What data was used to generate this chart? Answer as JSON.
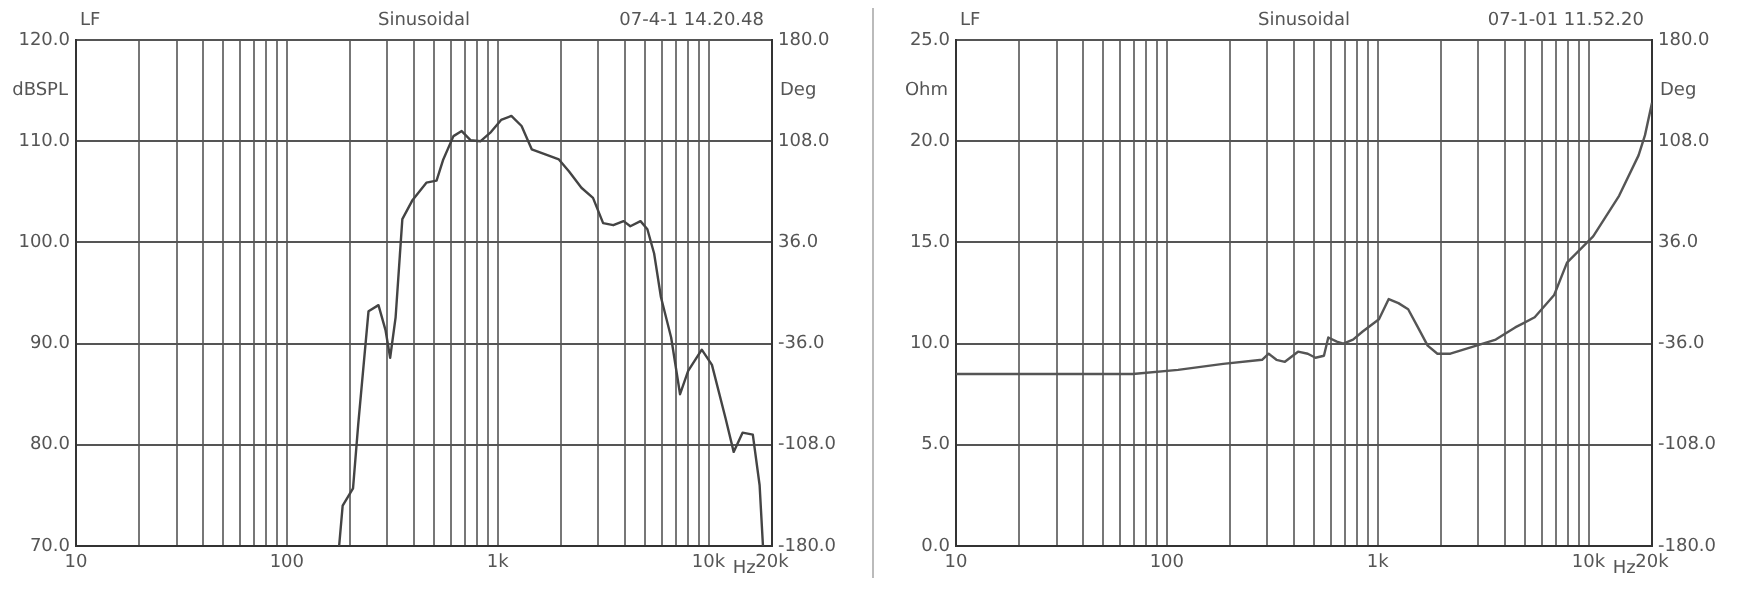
{
  "chart_data": [
    {
      "type": "line",
      "title": "Sinusoidal",
      "annotations": [
        "LF",
        "07-4-1 14.20.48"
      ],
      "xlabel": "Hz",
      "ylabel": "dBSPL",
      "y2label": "Deg",
      "log": "x",
      "grid": true,
      "legend": false,
      "marker": "none",
      "line_style": "solid",
      "xlim": [
        10,
        20000
      ],
      "xticks": [
        {
          "value": 10,
          "label": "10"
        },
        {
          "value": 20,
          "label": null
        },
        {
          "value": 30,
          "label": null
        },
        {
          "value": 40,
          "label": null
        },
        {
          "value": 50,
          "label": null
        },
        {
          "value": 60,
          "label": null
        },
        {
          "value": 70,
          "label": null
        },
        {
          "value": 80,
          "label": null
        },
        {
          "value": 90,
          "label": null
        },
        {
          "value": 100,
          "label": "100"
        },
        {
          "value": 200,
          "label": null
        },
        {
          "value": 300,
          "label": null
        },
        {
          "value": 400,
          "label": null
        },
        {
          "value": 500,
          "label": null
        },
        {
          "value": 600,
          "label": null
        },
        {
          "value": 700,
          "label": null
        },
        {
          "value": 800,
          "label": null
        },
        {
          "value": 900,
          "label": null
        },
        {
          "value": 1000,
          "label": "1k"
        },
        {
          "value": 2000,
          "label": null
        },
        {
          "value": 3000,
          "label": null
        },
        {
          "value": 4000,
          "label": null
        },
        {
          "value": 5000,
          "label": null
        },
        {
          "value": 6000,
          "label": null
        },
        {
          "value": 7000,
          "label": null
        },
        {
          "value": 8000,
          "label": null
        },
        {
          "value": 9000,
          "label": null
        },
        {
          "value": 10000,
          "label": "10k"
        },
        {
          "value": 20000,
          "label": "20k"
        }
      ],
      "ylim": [
        70,
        120
      ],
      "yticks": [
        {
          "value": 70,
          "label": "70.0"
        },
        {
          "value": 80,
          "label": "80.0"
        },
        {
          "value": 90,
          "label": "90.0"
        },
        {
          "value": 100,
          "label": "100.0"
        },
        {
          "value": 110,
          "label": "110.0"
        },
        {
          "value": 120,
          "label": "120.0"
        }
      ],
      "y2lim": [
        -180,
        180
      ],
      "y2ticks": [
        {
          "value": -180,
          "label": "-180.0"
        },
        {
          "value": -108,
          "label": "-108.0"
        },
        {
          "value": -36,
          "label": "-36.0"
        },
        {
          "value": 36,
          "label": "36.0"
        },
        {
          "value": 108,
          "label": "108.0"
        },
        {
          "value": 180,
          "label": "180.0"
        }
      ],
      "series": [
        {
          "color": "#444444",
          "x": [
            177,
            184,
            206,
            218,
            244,
            272,
            294,
            309,
            328,
            353,
            395,
            459,
            513,
            552,
            617,
            675,
            743,
            830,
            929,
            1038,
            1161,
            1298,
            1450,
            1683,
            1951,
            2181,
            2495,
            2832,
            3163,
            3535,
            3953,
            4257,
            4757,
            5128,
            5521,
            5945,
            6648,
            7328,
            8005,
            9289,
            10380,
            12050,
            13160,
            14500,
            16220,
            17470,
            18120
          ],
          "values": [
            70,
            74.0,
            75.7,
            82.0,
            93.2,
            93.8,
            91.3,
            88.6,
            92.6,
            102.3,
            104.2,
            105.9,
            106.1,
            108.2,
            110.5,
            111.0,
            110.1,
            110.0,
            110.9,
            112.1,
            112.5,
            111.5,
            109.2,
            108.7,
            108.2,
            107.0,
            105.4,
            104.4,
            101.9,
            101.7,
            102.1,
            101.6,
            102.1,
            101.3,
            98.9,
            94.6,
            90.6,
            85.0,
            87.3,
            89.4,
            87.9,
            82.6,
            79.3,
            81.2,
            81.0,
            76.0,
            70
          ]
        }
      ]
    },
    {
      "type": "line",
      "title": "Sinusoidal",
      "annotations": [
        "LF",
        "07-1-01 11.52.20"
      ],
      "xlabel": "Hz",
      "ylabel": "Ohm",
      "y2label": "Deg",
      "log": "x",
      "grid": true,
      "legend": false,
      "marker": "none",
      "line_style": "solid",
      "xlim": [
        10,
        20000
      ],
      "xticks": [
        {
          "value": 10,
          "label": "10"
        },
        {
          "value": 20,
          "label": null
        },
        {
          "value": 30,
          "label": null
        },
        {
          "value": 40,
          "label": null
        },
        {
          "value": 50,
          "label": null
        },
        {
          "value": 60,
          "label": null
        },
        {
          "value": 70,
          "label": null
        },
        {
          "value": 80,
          "label": null
        },
        {
          "value": 90,
          "label": null
        },
        {
          "value": 100,
          "label": "100"
        },
        {
          "value": 200,
          "label": null
        },
        {
          "value": 300,
          "label": null
        },
        {
          "value": 400,
          "label": null
        },
        {
          "value": 500,
          "label": null
        },
        {
          "value": 600,
          "label": null
        },
        {
          "value": 700,
          "label": null
        },
        {
          "value": 800,
          "label": null
        },
        {
          "value": 900,
          "label": null
        },
        {
          "value": 1000,
          "label": "1k"
        },
        {
          "value": 2000,
          "label": null
        },
        {
          "value": 3000,
          "label": null
        },
        {
          "value": 4000,
          "label": null
        },
        {
          "value": 5000,
          "label": null
        },
        {
          "value": 6000,
          "label": null
        },
        {
          "value": 7000,
          "label": null
        },
        {
          "value": 8000,
          "label": null
        },
        {
          "value": 9000,
          "label": null
        },
        {
          "value": 10000,
          "label": "10k"
        },
        {
          "value": 20000,
          "label": "20k"
        }
      ],
      "ylim": [
        0,
        25
      ],
      "yticks": [
        {
          "value": 0,
          "label": "0.0"
        },
        {
          "value": 5,
          "label": "5.0"
        },
        {
          "value": 10,
          "label": "10.0"
        },
        {
          "value": 15,
          "label": "15.0"
        },
        {
          "value": 20,
          "label": "20.0"
        },
        {
          "value": 25,
          "label": "25.0"
        }
      ],
      "y2lim": [
        -180,
        180
      ],
      "y2ticks": [
        {
          "value": -180,
          "label": "-180.0"
        },
        {
          "value": -108,
          "label": "-108.0"
        },
        {
          "value": -36,
          "label": "-36.0"
        },
        {
          "value": 36,
          "label": "36.0"
        },
        {
          "value": 108,
          "label": "108.0"
        },
        {
          "value": 180,
          "label": "180.0"
        }
      ],
      "series": [
        {
          "color": "#555555",
          "x": [
            10,
            69,
            113,
            185,
            283,
            304,
            331,
            363,
            419,
            466,
            507,
            556,
            583,
            640,
            687,
            764,
            849,
            1014,
            1128,
            1254,
            1395,
            1552,
            1726,
            1920,
            2212,
            2549,
            2938,
            3631,
            4489,
            5555,
            6871,
            7907,
            10520,
            13960,
            17270,
            18530,
            20000
          ],
          "values": [
            8.5,
            8.5,
            8.7,
            9.0,
            9.2,
            9.5,
            9.2,
            9.1,
            9.6,
            9.5,
            9.3,
            9.4,
            10.3,
            10.1,
            10.0,
            10.2,
            10.6,
            11.2,
            12.2,
            12.0,
            11.7,
            10.8,
            9.9,
            9.5,
            9.5,
            9.7,
            9.9,
            10.2,
            10.8,
            11.3,
            12.4,
            14.0,
            15.3,
            17.3,
            19.3,
            20.3,
            21.9
          ]
        }
      ]
    }
  ]
}
